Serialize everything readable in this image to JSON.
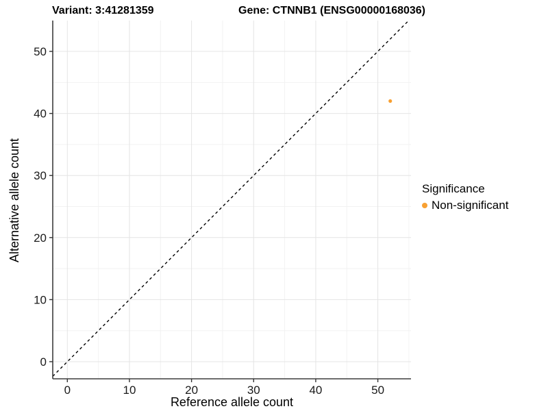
{
  "titles": {
    "variant": "Variant: 3:41281359",
    "gene": "Gene: CTNNB1 (ENSG00000168036)"
  },
  "chart_data": {
    "type": "scatter",
    "title_left": "Variant: 3:41281359",
    "title_right": "Gene: CTNNB1 (ENSG00000168036)",
    "xlabel": "Reference allele count",
    "ylabel": "Alternative allele count",
    "xlim": [
      -2.35,
      55.34
    ],
    "ylim": [
      -2.76,
      54.97
    ],
    "x_ticks": [
      0,
      10,
      20,
      30,
      40,
      50
    ],
    "y_ticks": [
      0,
      10,
      20,
      30,
      40,
      50
    ],
    "x_minor_ticks": [
      5,
      15,
      25,
      35,
      45,
      55
    ],
    "y_minor_ticks": [
      5,
      15,
      25,
      35,
      45
    ],
    "grid": true,
    "points": [
      {
        "x": 52,
        "y": 42,
        "series": "Non-significant"
      }
    ],
    "reference_line": {
      "kind": "identity y=x",
      "style": "dashed",
      "color": "#000000"
    },
    "legend": {
      "title": "Significance",
      "position": "right",
      "entries": [
        {
          "label": "Non-significant",
          "color": "#F8A032"
        }
      ]
    }
  },
  "colors": {
    "point": "#F8A032",
    "grid_major": "#e4e4e4",
    "grid_minor": "#f2f2f2",
    "axis_line": "#3c3c3c",
    "tick_mark": "#333333",
    "tick_label": "#1a1a1a",
    "background": "#ffffff"
  }
}
